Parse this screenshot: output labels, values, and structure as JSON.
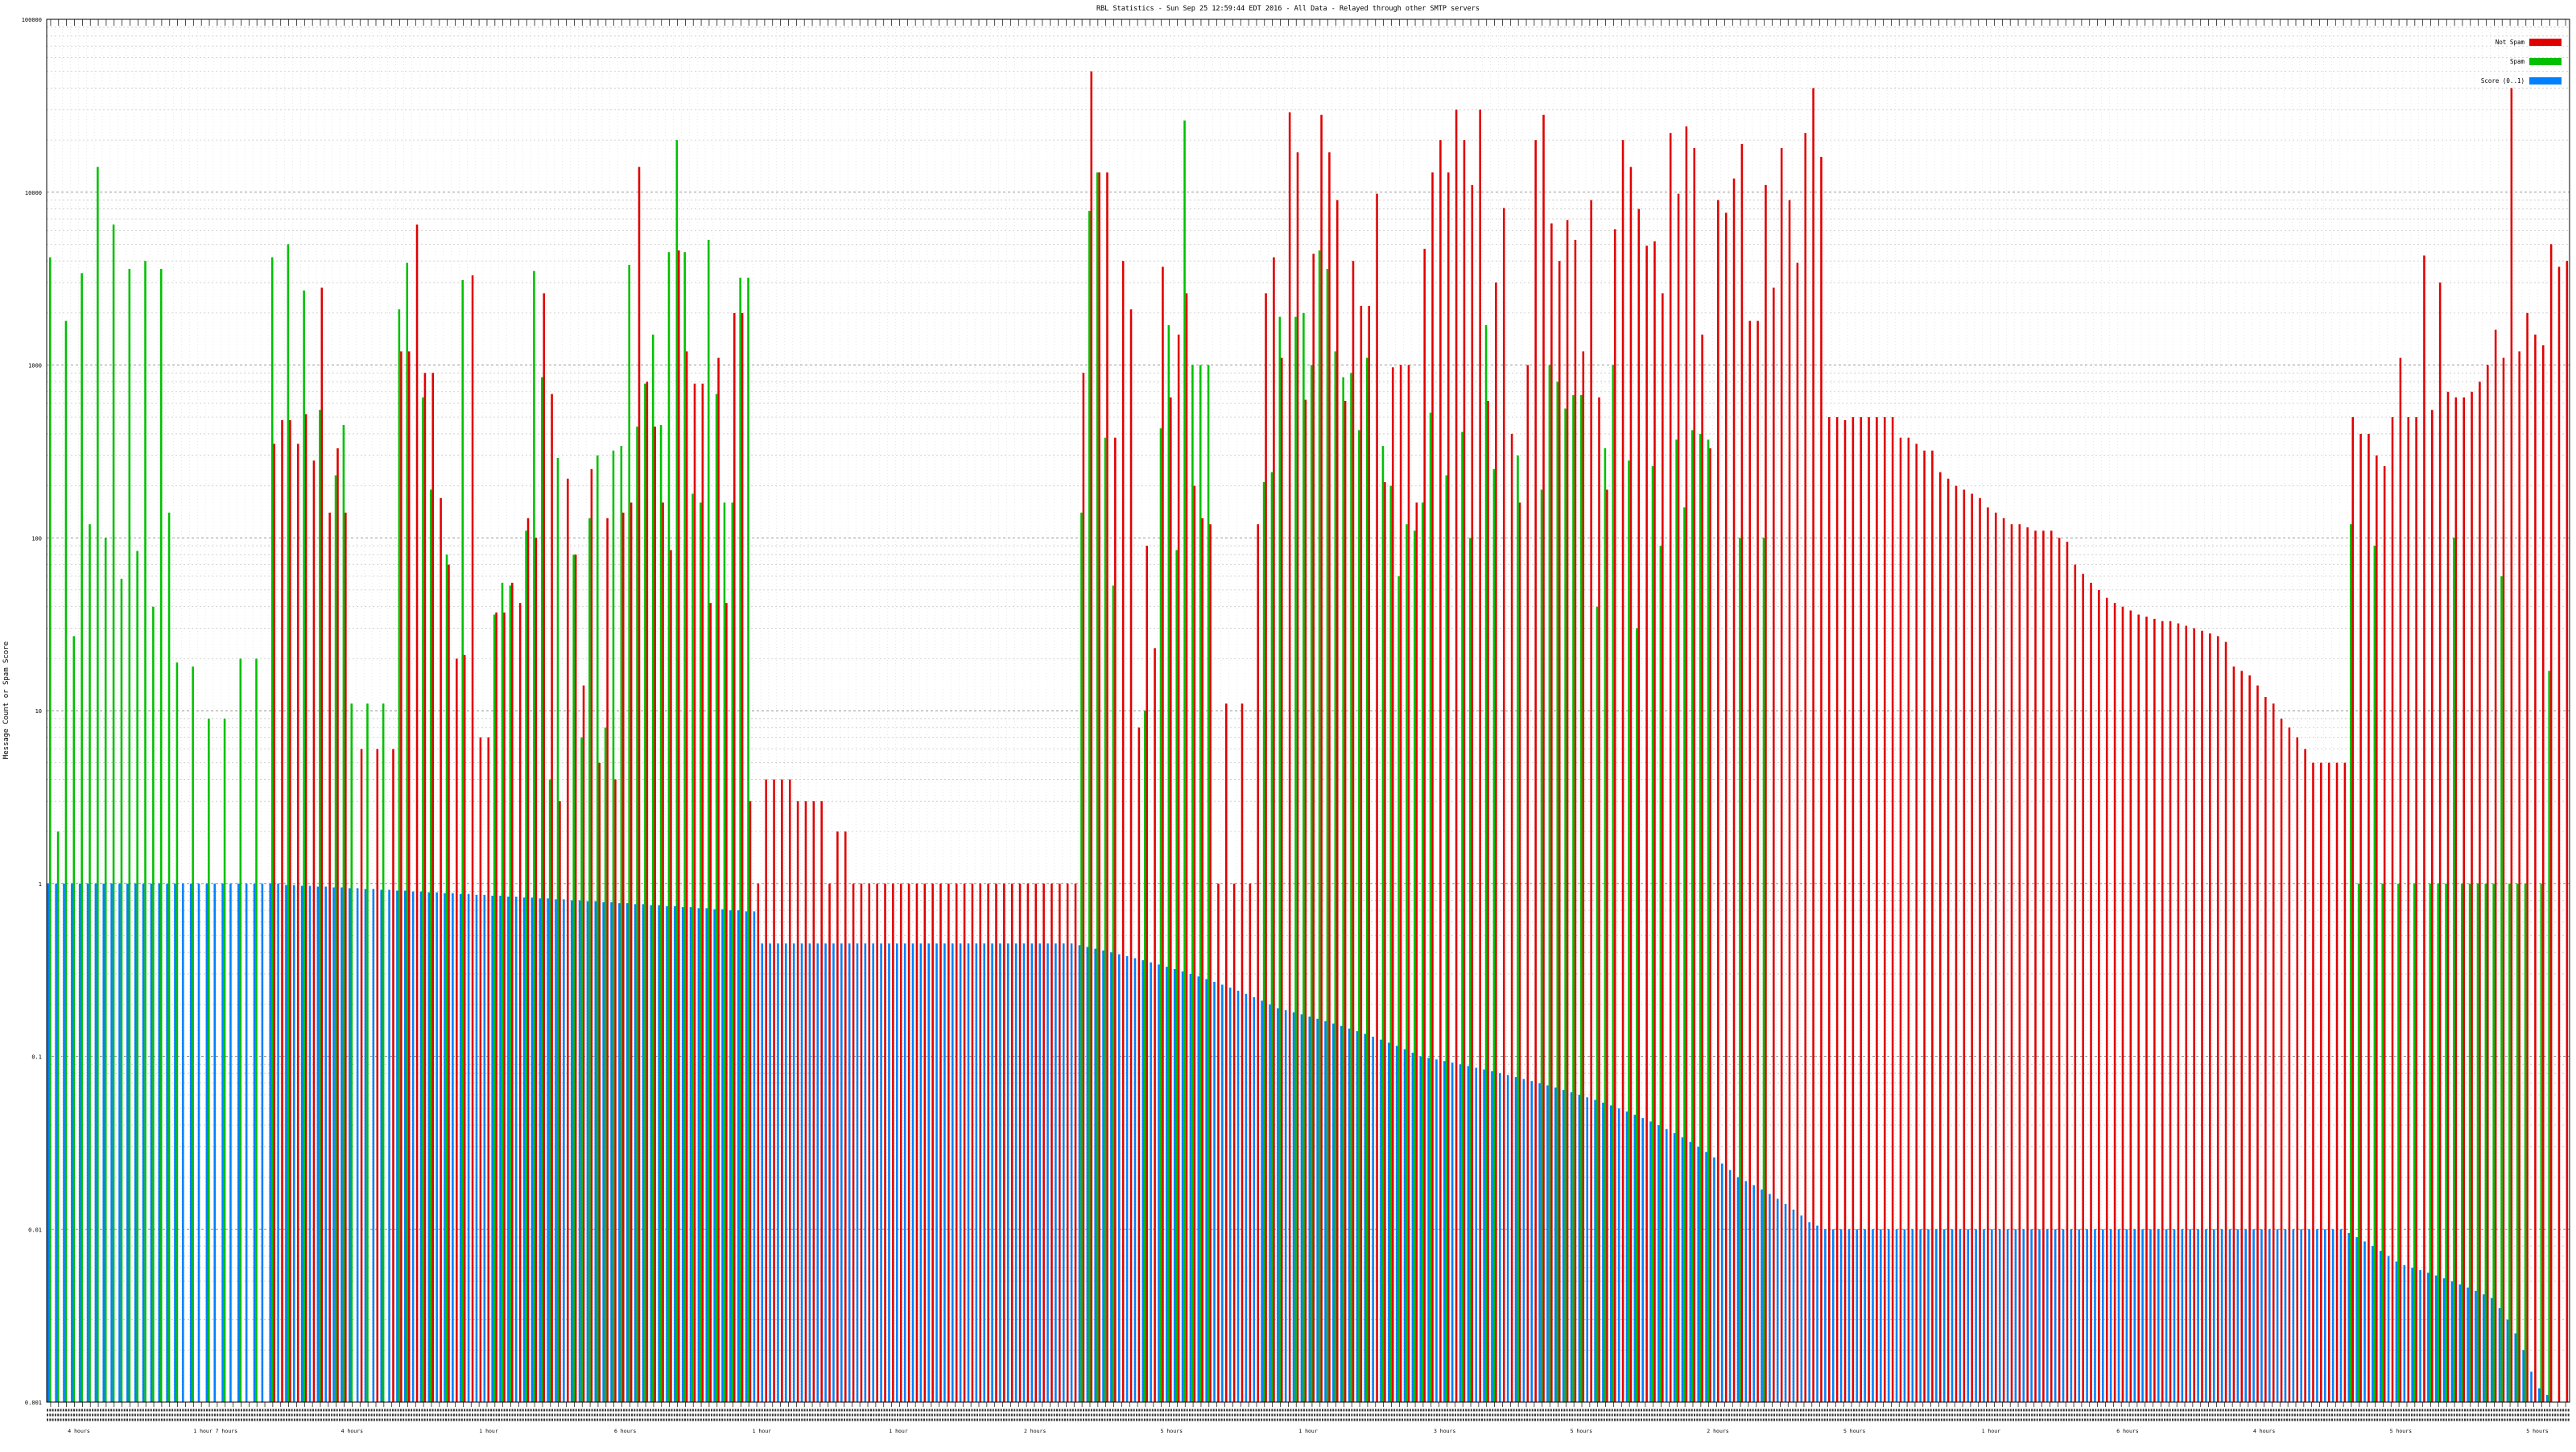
{
  "chart_data": {
    "type": "bar",
    "title": "RBL Statistics - Sun Sep 25 12:59:44 EDT 2016 - All Data - Relayed through other SMTP servers",
    "xlabel": "",
    "ylabel": "Message Count or Spam Score",
    "ylog": true,
    "ylim": [
      0.001,
      100000
    ],
    "yticks": [
      0.001,
      0.01,
      0.1,
      1,
      10,
      100,
      1000,
      10000,
      100000
    ],
    "ytick_labels": [
      "0.001",
      "0.01",
      "0.1",
      "1",
      "10",
      "100",
      "1000",
      "10000",
      "100000"
    ],
    "grid": true,
    "legend_position": "top-right",
    "series": [
      {
        "name": "Not Spam",
        "color": "#e00000"
      },
      {
        "name": "Spam",
        "color": "#00c000"
      },
      {
        "name": "Score (0..1)",
        "color": "#0080ff"
      }
    ],
    "bottom_labels": [
      "4 hours",
      "1 hour 7 hours",
      "4 hours",
      "1 hour",
      "6 hours",
      "1 hour",
      "1 hour",
      "2 hours",
      "5 hours",
      "1 hour",
      "3 hours",
      "5 hours",
      "2 hours",
      "5 hours",
      "1 hour",
      "6 hours",
      "4 hours",
      "5 hours",
      "5 hours"
    ],
    "bars": [
      [
        0,
        4200,
        1
      ],
      [
        0,
        2,
        1
      ],
      [
        0,
        1800,
        1
      ],
      [
        0,
        27,
        1
      ],
      [
        0,
        3400,
        1
      ],
      [
        0,
        120,
        1
      ],
      [
        0,
        14000,
        1
      ],
      [
        0,
        100,
        1
      ],
      [
        0,
        6500,
        1
      ],
      [
        0,
        58,
        1
      ],
      [
        0,
        3600,
        1
      ],
      [
        0,
        84,
        1
      ],
      [
        0,
        4000,
        1
      ],
      [
        0,
        40,
        1
      ],
      [
        0,
        3600,
        1
      ],
      [
        0,
        140,
        1
      ],
      [
        0,
        19,
        1
      ],
      [
        0,
        0,
        1
      ],
      [
        0,
        18,
        1
      ],
      [
        0,
        0,
        1
      ],
      [
        0,
        9,
        1
      ],
      [
        0,
        0,
        1
      ],
      [
        0,
        9,
        1
      ],
      [
        0,
        0,
        1
      ],
      [
        0,
        20,
        1
      ],
      [
        0,
        0,
        1
      ],
      [
        0,
        20,
        1
      ],
      [
        0,
        0,
        1
      ],
      [
        350,
        4200,
        1
      ],
      [
        480,
        0,
        1
      ],
      [
        480,
        5000,
        0.98
      ],
      [
        350,
        0,
        0.98
      ],
      [
        520,
        2700,
        0.97
      ],
      [
        280,
        0,
        0.97
      ],
      [
        2800,
        550,
        0.96
      ],
      [
        140,
        0,
        0.96
      ],
      [
        330,
        230,
        0.95
      ],
      [
        140,
        450,
        0.95
      ],
      [
        0,
        11,
        0.94
      ],
      [
        6,
        0,
        0.94
      ],
      [
        0,
        11,
        0.93
      ],
      [
        6,
        0,
        0.93
      ],
      [
        0,
        11,
        0.92
      ],
      [
        6,
        0,
        0.92
      ],
      [
        1200,
        2100,
        0.91
      ],
      [
        1200,
        3900,
        0.91
      ],
      [
        6500,
        0,
        0.9
      ],
      [
        900,
        650,
        0.9
      ],
      [
        900,
        190,
        0.89
      ],
      [
        170,
        0,
        0.89
      ],
      [
        70,
        80,
        0.88
      ],
      [
        20,
        0,
        0.88
      ],
      [
        21,
        3100,
        0.87
      ],
      [
        3300,
        0,
        0.87
      ],
      [
        7,
        0,
        0.86
      ],
      [
        7,
        0,
        0.86
      ],
      [
        37,
        36,
        0.85
      ],
      [
        37,
        55,
        0.85
      ],
      [
        55,
        53,
        0.84
      ],
      [
        42,
        0,
        0.84
      ],
      [
        130,
        110,
        0.83
      ],
      [
        100,
        3500,
        0.83
      ],
      [
        2600,
        850,
        0.82
      ],
      [
        680,
        4,
        0.82
      ],
      [
        3,
        290,
        0.81
      ],
      [
        220,
        0,
        0.81
      ],
      [
        80,
        80,
        0.8
      ],
      [
        14,
        7,
        0.8
      ],
      [
        250,
        130,
        0.79
      ],
      [
        5,
        300,
        0.79
      ],
      [
        130,
        8,
        0.78
      ],
      [
        4,
        320,
        0.78
      ],
      [
        140,
        340,
        0.77
      ],
      [
        160,
        3800,
        0.77
      ],
      [
        14000,
        440,
        0.76
      ],
      [
        800,
        780,
        0.76
      ],
      [
        440,
        1500,
        0.75
      ],
      [
        160,
        450,
        0.75
      ],
      [
        85,
        4500,
        0.74
      ],
      [
        4600,
        20000,
        0.74
      ],
      [
        1200,
        4500,
        0.73
      ],
      [
        780,
        180,
        0.73
      ],
      [
        780,
        160,
        0.72
      ],
      [
        42,
        5300,
        0.72
      ],
      [
        1100,
        680,
        0.71
      ],
      [
        42,
        160,
        0.71
      ],
      [
        2000,
        160,
        0.7
      ],
      [
        2000,
        3200,
        0.7
      ],
      [
        3,
        3200,
        0.69
      ],
      [
        1,
        0,
        0.69
      ],
      [
        4,
        0,
        0.45
      ],
      [
        4,
        0,
        0.45
      ],
      [
        4,
        0,
        0.45
      ],
      [
        4,
        0,
        0.45
      ],
      [
        3,
        0,
        0.45
      ],
      [
        3,
        0,
        0.45
      ],
      [
        3,
        0,
        0.45
      ],
      [
        3,
        0,
        0.45
      ],
      [
        1,
        0,
        0.45
      ],
      [
        2,
        0,
        0.45
      ],
      [
        2,
        0,
        0.45
      ],
      [
        1,
        0,
        0.45
      ],
      [
        1,
        0,
        0.45
      ],
      [
        1,
        0,
        0.45
      ],
      [
        1,
        0,
        0.45
      ],
      [
        1,
        0,
        0.45
      ],
      [
        1,
        0,
        0.45
      ],
      [
        1,
        0,
        0.45
      ],
      [
        1,
        0,
        0.45
      ],
      [
        1,
        0,
        0.45
      ],
      [
        1,
        0,
        0.45
      ],
      [
        1,
        0,
        0.45
      ],
      [
        1,
        0,
        0.45
      ],
      [
        1,
        0,
        0.45
      ],
      [
        1,
        0,
        0.45
      ],
      [
        1,
        0,
        0.45
      ],
      [
        1,
        0,
        0.45
      ],
      [
        1,
        0,
        0.45
      ],
      [
        1,
        0,
        0.45
      ],
      [
        1,
        0,
        0.45
      ],
      [
        1,
        0,
        0.45
      ],
      [
        1,
        0,
        0.45
      ],
      [
        1,
        0,
        0.45
      ],
      [
        1,
        0,
        0.45
      ],
      [
        1,
        0,
        0.45
      ],
      [
        1,
        0,
        0.45
      ],
      [
        1,
        0,
        0.45
      ],
      [
        1,
        0,
        0.45
      ],
      [
        1,
        0,
        0.45
      ],
      [
        1,
        0,
        0.45
      ],
      [
        900,
        140,
        0.44
      ],
      [
        50000,
        7800,
        0.43
      ],
      [
        13000,
        13000,
        0.42
      ],
      [
        13000,
        380,
        0.41
      ],
      [
        380,
        53,
        0.4
      ],
      [
        4000,
        0,
        0.39
      ],
      [
        2100,
        0,
        0.38
      ],
      [
        8,
        0,
        0.37
      ],
      [
        90,
        10,
        0.36
      ],
      [
        23,
        0,
        0.35
      ],
      [
        3700,
        430,
        0.34
      ],
      [
        650,
        1700,
        0.33
      ],
      [
        1500,
        85,
        0.32
      ],
      [
        2600,
        26000,
        0.31
      ],
      [
        200,
        1000,
        0.3
      ],
      [
        130,
        1000,
        0.29
      ],
      [
        120,
        1000,
        0.28
      ],
      [
        1,
        0,
        0.27
      ],
      [
        11,
        0,
        0.26
      ],
      [
        1,
        0,
        0.25
      ],
      [
        11,
        0,
        0.24
      ],
      [
        1,
        0,
        0.23
      ],
      [
        120,
        0,
        0.22
      ],
      [
        2600,
        210,
        0.21
      ],
      [
        4200,
        240,
        0.2
      ],
      [
        1100,
        1900,
        0.19
      ],
      [
        29000,
        0,
        0.185
      ],
      [
        17000,
        1900,
        0.18
      ],
      [
        630,
        2000,
        0.175
      ],
      [
        4400,
        1000,
        0.17
      ],
      [
        28000,
        4600,
        0.165
      ],
      [
        17000,
        3600,
        0.16
      ],
      [
        9000,
        1200,
        0.155
      ],
      [
        620,
        850,
        0.15
      ],
      [
        4000,
        900,
        0.145
      ],
      [
        2200,
        420,
        0.14
      ],
      [
        2200,
        1100,
        0.135
      ],
      [
        9800,
        0,
        0.13
      ],
      [
        210,
        340,
        0.125
      ],
      [
        970,
        200,
        0.12
      ],
      [
        1000,
        60,
        0.115
      ],
      [
        1000,
        120,
        0.11
      ],
      [
        160,
        110,
        0.105
      ],
      [
        4700,
        160,
        0.1
      ],
      [
        13000,
        530,
        0.098
      ],
      [
        20000,
        0,
        0.096
      ],
      [
        13000,
        230,
        0.094
      ],
      [
        30000,
        0,
        0.092
      ],
      [
        20000,
        410,
        0.09
      ],
      [
        11000,
        100,
        0.088
      ],
      [
        30000,
        0,
        0.086
      ],
      [
        620,
        1700,
        0.084
      ],
      [
        3000,
        250,
        0.082
      ],
      [
        8100,
        0,
        0.08
      ],
      [
        400,
        0,
        0.078
      ],
      [
        160,
        300,
        0.076
      ],
      [
        1000,
        0,
        0.074
      ],
      [
        20000,
        0,
        0.072
      ],
      [
        28000,
        190,
        0.07
      ],
      [
        6600,
        1000,
        0.068
      ],
      [
        4000,
        800,
        0.066
      ],
      [
        6900,
        560,
        0.064
      ],
      [
        5300,
        670,
        0.062
      ],
      [
        1200,
        670,
        0.06
      ],
      [
        9000,
        0,
        0.058
      ],
      [
        650,
        40,
        0.056
      ],
      [
        190,
        330,
        0.054
      ],
      [
        6100,
        1000,
        0.052
      ],
      [
        20000,
        0,
        0.05
      ],
      [
        14000,
        280,
        0.048
      ],
      [
        8000,
        30,
        0.046
      ],
      [
        4900,
        0,
        0.044
      ],
      [
        5200,
        260,
        0.042
      ],
      [
        2600,
        90,
        0.04
      ],
      [
        22000,
        0,
        0.038
      ],
      [
        9800,
        370,
        0.036
      ],
      [
        24000,
        150,
        0.034
      ],
      [
        18000,
        420,
        0.032
      ],
      [
        1500,
        400,
        0.03
      ],
      [
        330,
        370,
        0.028
      ],
      [
        9000,
        0,
        0.026
      ],
      [
        7600,
        0,
        0.024
      ],
      [
        12000,
        0,
        0.022
      ],
      [
        19000,
        100,
        0.02
      ],
      [
        1800,
        0,
        0.019
      ],
      [
        1800,
        0,
        0.018
      ],
      [
        11000,
        100,
        0.017
      ],
      [
        2800,
        0,
        0.016
      ],
      [
        18000,
        0,
        0.015
      ],
      [
        9000,
        0,
        0.014
      ],
      [
        3900,
        0,
        0.013
      ],
      [
        22000,
        0,
        0.012
      ],
      [
        40000,
        0,
        0.011
      ],
      [
        16000,
        0,
        0.0105
      ],
      [
        500,
        0,
        0.01
      ],
      [
        500,
        0,
        0.01
      ],
      [
        480,
        0,
        0.01
      ],
      [
        500,
        0,
        0.01
      ],
      [
        500,
        0,
        0.01
      ],
      [
        500,
        0,
        0.01
      ],
      [
        500,
        0,
        0.01
      ],
      [
        500,
        0,
        0.01
      ],
      [
        500,
        0,
        0.01
      ],
      [
        380,
        0,
        0.01
      ],
      [
        380,
        0,
        0.01
      ],
      [
        350,
        0,
        0.01
      ],
      [
        320,
        0,
        0.01
      ],
      [
        320,
        0,
        0.01
      ],
      [
        240,
        0,
        0.01
      ],
      [
        220,
        0,
        0.01
      ],
      [
        200,
        0,
        0.01
      ],
      [
        190,
        0,
        0.01
      ],
      [
        180,
        0,
        0.01
      ],
      [
        170,
        0,
        0.01
      ],
      [
        150,
        0,
        0.01
      ],
      [
        140,
        0,
        0.01
      ],
      [
        130,
        0,
        0.01
      ],
      [
        120,
        0,
        0.01
      ],
      [
        120,
        0,
        0.01
      ],
      [
        115,
        0,
        0.01
      ],
      [
        110,
        0,
        0.01
      ],
      [
        110,
        0,
        0.01
      ],
      [
        110,
        0,
        0.01
      ],
      [
        100,
        0,
        0.01
      ],
      [
        95,
        0,
        0.01
      ],
      [
        70,
        0,
        0.01
      ],
      [
        62,
        0,
        0.01
      ],
      [
        55,
        0,
        0.01
      ],
      [
        50,
        0,
        0.01
      ],
      [
        45,
        0,
        0.01
      ],
      [
        42,
        0,
        0.01
      ],
      [
        40,
        0,
        0.01
      ],
      [
        38,
        0,
        0.01
      ],
      [
        36,
        0,
        0.01
      ],
      [
        35,
        0,
        0.01
      ],
      [
        34,
        0,
        0.01
      ],
      [
        33,
        0,
        0.01
      ],
      [
        33,
        0,
        0.01
      ],
      [
        32,
        0,
        0.01
      ],
      [
        31,
        0,
        0.01
      ],
      [
        30,
        0,
        0.01
      ],
      [
        29,
        0,
        0.01
      ],
      [
        28,
        0,
        0.01
      ],
      [
        27,
        0,
        0.01
      ],
      [
        25,
        0,
        0.01
      ],
      [
        18,
        0,
        0.01
      ],
      [
        17,
        0,
        0.01
      ],
      [
        16,
        0,
        0.01
      ],
      [
        14,
        0,
        0.01
      ],
      [
        12,
        0,
        0.01
      ],
      [
        11,
        0,
        0.01
      ],
      [
        9,
        0,
        0.01
      ],
      [
        8,
        0,
        0.01
      ],
      [
        7,
        0,
        0.01
      ],
      [
        6,
        0,
        0.01
      ],
      [
        5,
        0,
        0.01
      ],
      [
        5,
        0,
        0.01
      ],
      [
        5,
        0,
        0.01
      ],
      [
        5,
        0,
        0.01
      ],
      [
        5,
        0,
        0.01
      ],
      [
        500,
        120,
        0.0095
      ],
      [
        400,
        1,
        0.009
      ],
      [
        400,
        0,
        0.0085
      ],
      [
        300,
        90,
        0.008
      ],
      [
        260,
        1,
        0.0075
      ],
      [
        500,
        0,
        0.007
      ],
      [
        1100,
        1,
        0.0065
      ],
      [
        500,
        0,
        0.0062
      ],
      [
        500,
        1,
        0.006
      ],
      [
        4300,
        0,
        0.0058
      ],
      [
        550,
        1,
        0.0056
      ],
      [
        3000,
        1,
        0.0054
      ],
      [
        700,
        1,
        0.0052
      ],
      [
        650,
        100,
        0.005
      ],
      [
        650,
        1,
        0.0048
      ],
      [
        700,
        1,
        0.0046
      ],
      [
        800,
        1,
        0.0044
      ],
      [
        1000,
        1,
        0.0042
      ],
      [
        1600,
        1,
        0.004
      ],
      [
        1100,
        60,
        0.0035
      ],
      [
        40000,
        1,
        0.003
      ],
      [
        1200,
        1,
        0.0025
      ],
      [
        2000,
        1,
        0.002
      ],
      [
        1500,
        0,
        0.0015
      ],
      [
        1300,
        1,
        0.0012
      ],
      [
        5000,
        17,
        0.0011
      ],
      [
        3700,
        0,
        0.001
      ],
      [
        4000,
        0,
        0.001
      ]
    ]
  }
}
